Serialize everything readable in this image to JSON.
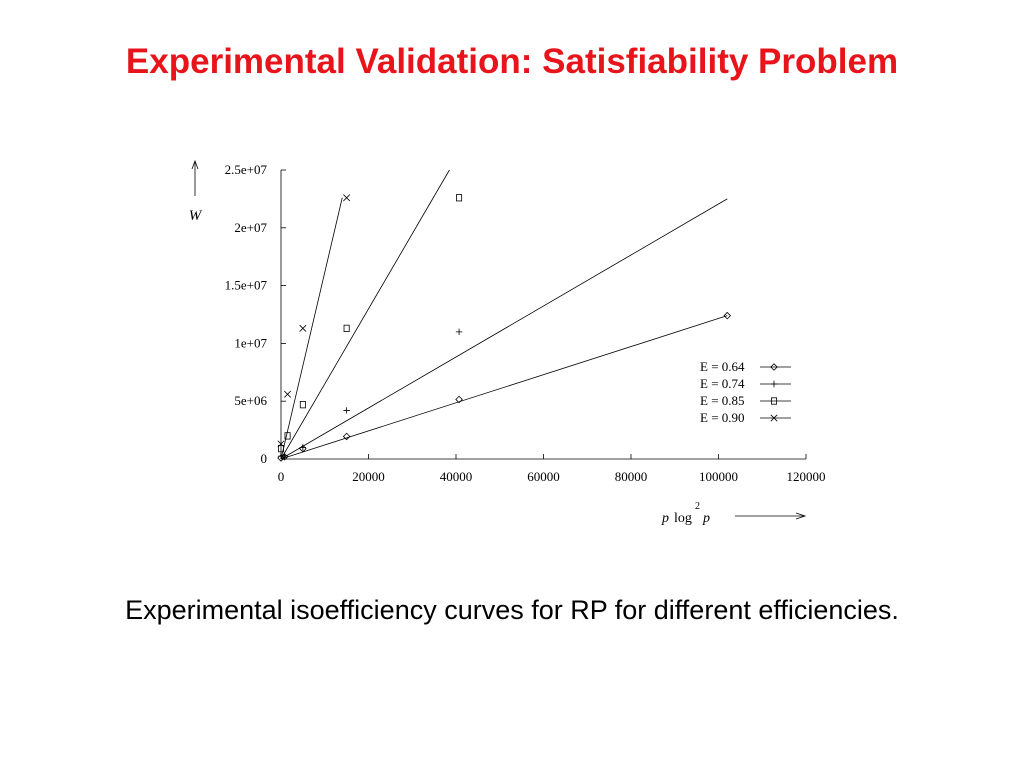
{
  "slide": {
    "title": "Experimental Validation: Satisfiability Problem",
    "caption": "Experimental isoefficiency curves for RP for different efficiencies."
  },
  "chart_data": {
    "type": "scatter",
    "ylabel": "W",
    "xlabel": {
      "p": "p",
      "log": "log",
      "exp": "2",
      "p2": "p"
    },
    "xlim": [
      0,
      120000
    ],
    "ylim": [
      0,
      25000000
    ],
    "x_ticks": [
      {
        "v": 0,
        "label": "0"
      },
      {
        "v": 20000,
        "label": "20000"
      },
      {
        "v": 40000,
        "label": "40000"
      },
      {
        "v": 60000,
        "label": "60000"
      },
      {
        "v": 80000,
        "label": "80000"
      },
      {
        "v": 100000,
        "label": "100000"
      },
      {
        "v": 120000,
        "label": "120000"
      }
    ],
    "y_ticks": [
      {
        "v": 0,
        "label": "0"
      },
      {
        "v": 5000000,
        "label": "5e+06"
      },
      {
        "v": 10000000,
        "label": "1e+07"
      },
      {
        "v": 15000000,
        "label": "1.5e+07"
      },
      {
        "v": 20000000,
        "label": "2e+07"
      },
      {
        "v": 25000000,
        "label": "2.5e+07"
      }
    ],
    "legend_position": "right",
    "series": [
      {
        "name": "E = 0.64",
        "marker": "diamond",
        "points": [
          [
            0,
            90000
          ],
          [
            800,
            200000
          ],
          [
            5000,
            900000
          ],
          [
            15000,
            1950000
          ],
          [
            40700,
            5150000
          ],
          [
            102000,
            12400000
          ]
        ],
        "fit_line": [
          [
            0,
            0
          ],
          [
            102000,
            12400000
          ]
        ]
      },
      {
        "name": "E = 0.74",
        "marker": "plus",
        "points": [
          [
            0,
            250000
          ],
          [
            800,
            300000
          ],
          [
            5000,
            1000000
          ],
          [
            15000,
            4200000
          ],
          [
            40700,
            11000000
          ]
        ],
        "fit_line": [
          [
            0,
            0
          ],
          [
            102000,
            22500000
          ]
        ]
      },
      {
        "name": "E = 0.85",
        "marker": "square",
        "points": [
          [
            0,
            900000
          ],
          [
            1500,
            2000000
          ],
          [
            5000,
            4700000
          ],
          [
            15000,
            11300000
          ],
          [
            40700,
            22600000
          ]
        ],
        "fit_line": [
          [
            0,
            0
          ],
          [
            38500,
            25000000
          ]
        ]
      },
      {
        "name": "E = 0.90",
        "marker": "cross",
        "points": [
          [
            0,
            1300000
          ],
          [
            1500,
            5600000
          ],
          [
            5000,
            11300000
          ],
          [
            15000,
            22600000
          ]
        ],
        "fit_line": [
          [
            0,
            0
          ],
          [
            14000,
            22600000
          ]
        ]
      }
    ]
  }
}
